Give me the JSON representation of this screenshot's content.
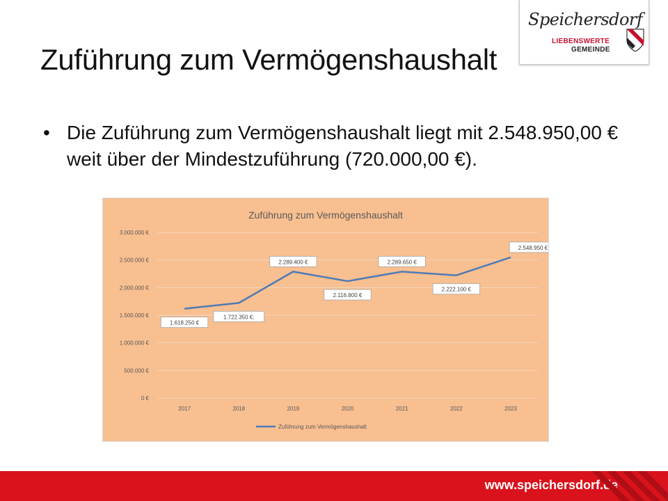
{
  "slide": {
    "title": "Zuführung zum Vermögenshaushalt",
    "bullet_marker": "•",
    "bullet_text": "Die Zuführung zum Vermögenshaushalt liegt mit 2.548.950,00 € weit über der Mindestzuführung (720.000,00 €)."
  },
  "logo": {
    "name": "Speichersdorf",
    "tagline_1": "LIEBENSWERTE",
    "tagline_2": "GEMEINDE"
  },
  "footer": {
    "url": "www.speichersdorf.de"
  },
  "colors": {
    "accent_red": "#d9121c",
    "chart_background": "#f8bf90",
    "series_line": "#4f7ab5",
    "gridline": "#f3d7bf"
  },
  "chart_data": {
    "type": "line",
    "title": "Zuführung zum Vermögenshaushalt",
    "categories": [
      "2017",
      "2018",
      "2019",
      "2020",
      "2021",
      "2022",
      "2023"
    ],
    "series": [
      {
        "name": "Zuführung zum Vermögenshaushalt",
        "values": [
          1618250,
          1722350,
          2289400,
          2116800,
          2289650,
          2222100,
          2548950
        ]
      }
    ],
    "data_labels": [
      "1.618.250 €",
      "1.722.350 €;",
      "2.289.400 €",
      "2.116.800 €",
      "2.289.650 €",
      "2.222.100 €",
      "2.548.950 €"
    ],
    "y_ticks": [
      "0 €",
      "500.000 €",
      "1.000.000 €",
      "1.500.000 €",
      "2.000.000 €",
      "2.500.000 €",
      "3.000.000 €"
    ],
    "ylim": [
      0,
      3000000
    ],
    "grid": true,
    "legend_position": "bottom"
  }
}
